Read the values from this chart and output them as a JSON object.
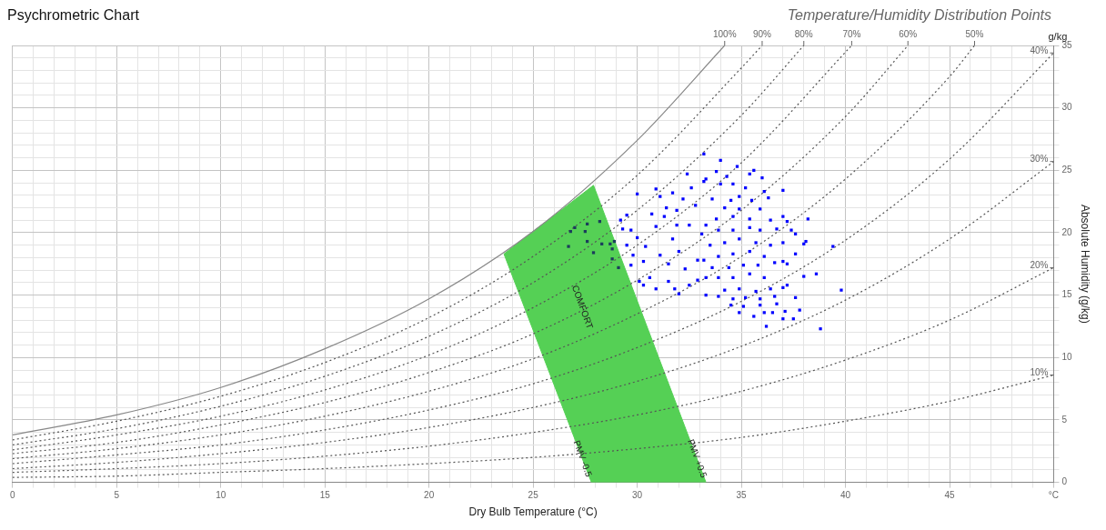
{
  "chart_data": {
    "type": "scatter",
    "title": "Psychrometric Chart",
    "subtitle": "Temperature/Humidity Distribution Points",
    "xlabel": "Dry Bulb Temperature (°C)",
    "ylabel": "Absolute Humidity (g/kg)",
    "xlim": [
      0,
      50
    ],
    "ylim": [
      0,
      35
    ],
    "xticks": [
      0,
      {
        "value": 1,
        "label": null
      },
      {
        "value": 2,
        "label": null
      },
      {
        "value": 3,
        "label": null
      },
      {
        "value": 4,
        "label": null
      },
      5,
      {
        "value": 6,
        "label": null
      },
      {
        "value": 7,
        "label": null
      },
      {
        "value": 8,
        "label": null
      },
      {
        "value": 9,
        "label": null
      },
      10,
      {
        "value": 11,
        "label": null
      },
      {
        "value": 12,
        "label": null
      },
      {
        "value": 13,
        "label": null
      },
      {
        "value": 14,
        "label": null
      },
      15,
      {
        "value": 16,
        "label": null
      },
      {
        "value": 17,
        "label": null
      },
      {
        "value": 18,
        "label": null
      },
      {
        "value": 19,
        "label": null
      },
      20,
      {
        "value": 21,
        "label": null
      },
      {
        "value": 22,
        "label": null
      },
      {
        "value": 23,
        "label": null
      },
      {
        "value": 24,
        "label": null
      },
      25,
      {
        "value": 26,
        "label": null
      },
      {
        "value": 27,
        "label": null
      },
      {
        "value": 28,
        "label": null
      },
      {
        "value": 29,
        "label": null
      },
      30,
      {
        "value": 31,
        "label": null
      },
      {
        "value": 32,
        "label": null
      },
      {
        "value": 33,
        "label": null
      },
      {
        "value": 34,
        "label": null
      },
      35,
      {
        "value": 36,
        "label": null
      },
      {
        "value": 37,
        "label": null
      },
      {
        "value": 38,
        "label": null
      },
      {
        "value": 39,
        "label": null
      },
      40,
      {
        "value": 41,
        "label": null
      },
      {
        "value": 42,
        "label": null
      },
      {
        "value": 43,
        "label": null
      },
      {
        "value": 44,
        "label": null
      },
      45,
      {
        "value": 46,
        "label": null
      },
      {
        "value": 47,
        "label": null
      },
      {
        "value": 48,
        "label": null
      },
      {
        "value": 49,
        "label": null
      },
      {
        "value": 50,
        "label": "°C"
      }
    ],
    "yticks": [
      0,
      {
        "value": 1,
        "label": null
      },
      {
        "value": 2,
        "label": null
      },
      {
        "value": 3,
        "label": null
      },
      {
        "value": 4,
        "label": null
      },
      5,
      {
        "value": 6,
        "label": null
      },
      {
        "value": 7,
        "label": null
      },
      {
        "value": 8,
        "label": null
      },
      {
        "value": 9,
        "label": null
      },
      10,
      {
        "value": 11,
        "label": null
      },
      {
        "value": 12,
        "label": null
      },
      {
        "value": 13,
        "label": null
      },
      {
        "value": 14,
        "label": null
      },
      15,
      {
        "value": 16,
        "label": null
      },
      {
        "value": 17,
        "label": null
      },
      {
        "value": 18,
        "label": null
      },
      {
        "value": 19,
        "label": null
      },
      20,
      {
        "value": 21,
        "label": null
      },
      {
        "value": 22,
        "label": null
      },
      {
        "value": 23,
        "label": null
      },
      {
        "value": 24,
        "label": null
      },
      25,
      {
        "value": 26,
        "label": null
      },
      {
        "value": 27,
        "label": null
      },
      {
        "value": 28,
        "label": null
      },
      {
        "value": 29,
        "label": null
      },
      30,
      {
        "value": 31,
        "label": null
      },
      {
        "value": 32,
        "label": null
      },
      {
        "value": 33,
        "label": null
      },
      {
        "value": 34,
        "label": null
      },
      35
    ],
    "grid": true,
    "legend": false,
    "annotations": [
      "g/kg",
      "PMV -0.5",
      "PMV +0.5"
    ],
    "series": [
      {
        "type": "area",
        "name": "COMFORT",
        "color": "#55d055",
        "x": [
          23.6,
          25,
          26.5,
          27.9,
          33.3,
          27.8,
          23.6
        ],
        "values": [
          18.3,
          20.1,
          22.0,
          23.8,
          0,
          0,
          18.3
        ]
      },
      {
        "type": "line",
        "name": "100%",
        "color": "#888888",
        "line_style": "solid",
        "x": [
          0,
          5,
          10,
          15,
          20,
          25,
          30,
          34.2
        ],
        "values": [
          3.8,
          5.4,
          7.6,
          10.7,
          14.7,
          20.1,
          27.4,
          35
        ]
      },
      {
        "type": "line",
        "name": "90%",
        "color": "#555555",
        "line_style": "dotted",
        "x": [
          0,
          5,
          10,
          15,
          20,
          25,
          30,
          35,
          36.0
        ],
        "values": [
          3.4,
          4.9,
          6.9,
          9.6,
          13.2,
          18.1,
          24.6,
          33.2,
          35
        ]
      },
      {
        "type": "line",
        "name": "80%",
        "color": "#555555",
        "line_style": "dotted",
        "x": [
          0,
          5,
          10,
          15,
          20,
          25,
          30,
          35,
          38.0
        ],
        "values": [
          3.0,
          4.3,
          6.1,
          8.5,
          11.7,
          16.0,
          21.8,
          29.4,
          35
        ]
      },
      {
        "type": "line",
        "name": "70%",
        "color": "#555555",
        "line_style": "dotted",
        "x": [
          0,
          5,
          10,
          15,
          20,
          25,
          30,
          35,
          40.3
        ],
        "values": [
          2.6,
          3.8,
          5.3,
          7.4,
          10.2,
          14.0,
          19.0,
          25.6,
          35
        ]
      },
      {
        "type": "line",
        "name": "60%",
        "color": "#555555",
        "line_style": "dotted",
        "x": [
          0,
          5,
          10,
          15,
          20,
          25,
          30,
          35,
          40,
          43.0
        ],
        "values": [
          2.3,
          3.2,
          4.6,
          6.4,
          8.8,
          11.9,
          16.2,
          21.8,
          29.3,
          35
        ]
      },
      {
        "type": "line",
        "name": "50%",
        "color": "#555555",
        "line_style": "dotted",
        "x": [
          0,
          5,
          10,
          15,
          20,
          25,
          30,
          35,
          40,
          45,
          46.2
        ],
        "values": [
          1.9,
          2.7,
          3.8,
          5.3,
          7.3,
          9.9,
          13.5,
          18.1,
          24.3,
          32.5,
          35
        ]
      },
      {
        "type": "line",
        "name": "40%",
        "color": "#555555",
        "line_style": "dotted",
        "x": [
          0,
          5,
          10,
          15,
          20,
          25,
          30,
          35,
          40,
          45,
          50
        ],
        "values": [
          1.5,
          2.2,
          3.0,
          4.2,
          5.8,
          7.9,
          10.8,
          14.5,
          19.4,
          25.9,
          34.4
        ]
      },
      {
        "type": "line",
        "name": "30%",
        "color": "#555555",
        "line_style": "dotted",
        "x": [
          0,
          5,
          10,
          15,
          20,
          25,
          30,
          35,
          40,
          45,
          50
        ],
        "values": [
          1.1,
          1.6,
          2.3,
          3.2,
          4.4,
          6.0,
          8.1,
          10.9,
          14.6,
          19.5,
          25.7
        ]
      },
      {
        "type": "line",
        "name": "20%",
        "color": "#555555",
        "line_style": "dotted",
        "x": [
          0,
          5,
          10,
          15,
          20,
          25,
          30,
          35,
          40,
          45,
          50
        ],
        "values": [
          0.8,
          1.1,
          1.5,
          2.1,
          2.9,
          4.0,
          5.4,
          7.3,
          9.8,
          13.0,
          17.2
        ]
      },
      {
        "type": "line",
        "name": "10%",
        "color": "#555555",
        "line_style": "dotted",
        "x": [
          0,
          5,
          10,
          15,
          20,
          25,
          30,
          35,
          40,
          45,
          50
        ],
        "values": [
          0.4,
          0.5,
          0.8,
          1.1,
          1.5,
          2.0,
          2.7,
          3.6,
          4.9,
          6.5,
          8.6
        ]
      },
      {
        "type": "scatter",
        "marker": "square",
        "color": "#1b3d5c",
        "x": [
          28.2,
          27.6,
          27.0,
          26.8,
          27.5,
          27.6,
          28.3,
          28.7,
          28.9,
          26.7,
          28.8,
          27.9,
          28.8,
          29.1
        ],
        "values": [
          20.9,
          20.7,
          20.4,
          20.1,
          20.1,
          19.3,
          19.1,
          19.1,
          19.3,
          18.9,
          18.7,
          18.4,
          17.9,
          17.2
        ]
      },
      {
        "type": "scatter",
        "marker": "square",
        "color": "#0000ff",
        "x": [
          33.2,
          30.0,
          30.9,
          31.7,
          31.1,
          32.4,
          29.5,
          29.2,
          29.3,
          29.7,
          30.7,
          31.3,
          30.9,
          30.0,
          29.5,
          30.4,
          29.8,
          29.7,
          30.3,
          31.1,
          31.7,
          32.0,
          31.5,
          30.1,
          30.3,
          30.6,
          30.9,
          31.5,
          31.8,
          32.0,
          32.5,
          32.9,
          33.3,
          32.3,
          32.9,
          32.5,
          33.1,
          32.8,
          32.2,
          31.9,
          32.6,
          33.2,
          31.4,
          31.9,
          34.0,
          34.8,
          35.6,
          35.4,
          36.0,
          33.8,
          33.3,
          34.3,
          34.0,
          34.6,
          35.2,
          36.1,
          37.0,
          36.3,
          35.5,
          34.9,
          34.5,
          33.6,
          34.2,
          34.9,
          35.9,
          37.0,
          38.2,
          37.2,
          36.4,
          35.4,
          34.6,
          33.8,
          33.3,
          33.9,
          34.6,
          35.4,
          35.9,
          36.7,
          37.4,
          37.6,
          38.1,
          38.0,
          39.4,
          37.0,
          36.4,
          35.7,
          34.9,
          34.2,
          33.5,
          33.2,
          33.9,
          34.6,
          35.4,
          36.1,
          36.6,
          37.2,
          37.6,
          37.0,
          35.8,
          35.1,
          34.4,
          33.6,
          33.3,
          33.9,
          34.6,
          35.4,
          36.1,
          38.0,
          38.6,
          37.0,
          37.2,
          39.8,
          36.4,
          35.7,
          34.9,
          34.2,
          33.9,
          34.6,
          35.2,
          35.9,
          36.6,
          37.6,
          36.7,
          35.9,
          35.1,
          34.5,
          34.9,
          35.6,
          36.1,
          36.5,
          37.1,
          37.8,
          37.5,
          37.0,
          36.2,
          38.8
        ],
        "values": [
          26.3,
          23.1,
          23.5,
          23.2,
          22.9,
          24.7,
          21.4,
          21.0,
          20.3,
          20.2,
          21.5,
          21.3,
          20.5,
          19.6,
          19.0,
          18.9,
          18.2,
          17.4,
          17.7,
          18.2,
          19.5,
          18.5,
          17.5,
          16.1,
          15.8,
          16.4,
          15.5,
          16.1,
          15.5,
          15.1,
          15.8,
          16.2,
          15.0,
          17.1,
          17.8,
          20.6,
          19.9,
          22.2,
          22.7,
          21.8,
          23.6,
          24.1,
          22.0,
          20.6,
          25.8,
          25.3,
          25.0,
          24.7,
          24.4,
          24.9,
          24.3,
          24.5,
          23.9,
          23.9,
          23.6,
          23.3,
          23.4,
          22.8,
          22.6,
          22.9,
          22.6,
          22.7,
          22.0,
          21.9,
          21.9,
          21.3,
          21.1,
          20.9,
          21.0,
          21.1,
          21.3,
          21.1,
          20.6,
          20.2,
          20.2,
          20.4,
          20.2,
          20.3,
          20.2,
          19.9,
          19.3,
          19.1,
          18.9,
          19.2,
          19.0,
          19.2,
          19.5,
          19.2,
          19.0,
          17.8,
          18.1,
          18.3,
          18.5,
          18.1,
          17.6,
          17.5,
          18.3,
          17.7,
          17.4,
          17.4,
          17.2,
          17.2,
          16.4,
          16.4,
          16.4,
          16.7,
          16.4,
          16.5,
          16.7,
          15.6,
          15.8,
          15.4,
          15.5,
          15.3,
          15.5,
          15.4,
          14.9,
          14.7,
          14.8,
          14.7,
          14.9,
          14.8,
          14.3,
          14.2,
          14.1,
          14.2,
          13.6,
          13.3,
          13.6,
          13.6,
          13.7,
          13.8,
          13.1,
          13.1,
          12.5,
          12.3
        ]
      }
    ]
  }
}
